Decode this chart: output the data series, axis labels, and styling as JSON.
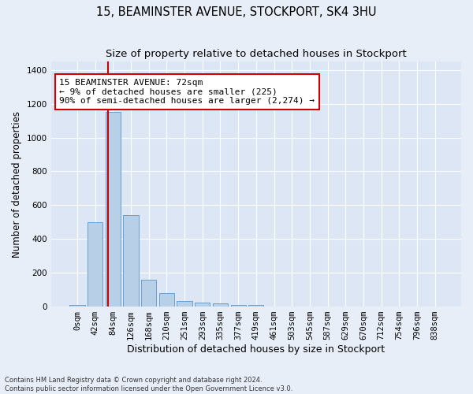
{
  "title": "15, BEAMINSTER AVENUE, STOCKPORT, SK4 3HU",
  "subtitle": "Size of property relative to detached houses in Stockport",
  "xlabel": "Distribution of detached houses by size in Stockport",
  "ylabel": "Number of detached properties",
  "bar_labels": [
    "0sqm",
    "42sqm",
    "84sqm",
    "126sqm",
    "168sqm",
    "210sqm",
    "251sqm",
    "293sqm",
    "335sqm",
    "377sqm",
    "419sqm",
    "461sqm",
    "503sqm",
    "545sqm",
    "587sqm",
    "629sqm",
    "670sqm",
    "712sqm",
    "754sqm",
    "796sqm",
    "838sqm"
  ],
  "bar_values": [
    10,
    500,
    1150,
    540,
    160,
    80,
    33,
    22,
    20,
    12,
    10,
    0,
    0,
    0,
    0,
    0,
    0,
    0,
    0,
    0,
    0
  ],
  "bar_color": "#b8cfe8",
  "bar_edge_color": "#6a9fd0",
  "vline_color": "#cc0000",
  "vline_x": 1.72,
  "ylim": [
    0,
    1450
  ],
  "yticks": [
    0,
    200,
    400,
    600,
    800,
    1000,
    1200,
    1400
  ],
  "annotation_text": "15 BEAMINSTER AVENUE: 72sqm\n← 9% of detached houses are smaller (225)\n90% of semi-detached houses are larger (2,274) →",
  "annotation_box_facecolor": "#ffffff",
  "annotation_box_edgecolor": "#cc0000",
  "bg_color": "#dce6f5",
  "fig_bg_color": "#e8eef8",
  "grid_color": "#ffffff",
  "footer_line1": "Contains HM Land Registry data © Crown copyright and database right 2024.",
  "footer_line2": "Contains public sector information licensed under the Open Government Licence v3.0.",
  "title_fontsize": 10.5,
  "subtitle_fontsize": 9.5,
  "xlabel_fontsize": 9,
  "ylabel_fontsize": 8.5,
  "tick_fontsize": 7.5,
  "annotation_fontsize": 8,
  "footer_fontsize": 6
}
